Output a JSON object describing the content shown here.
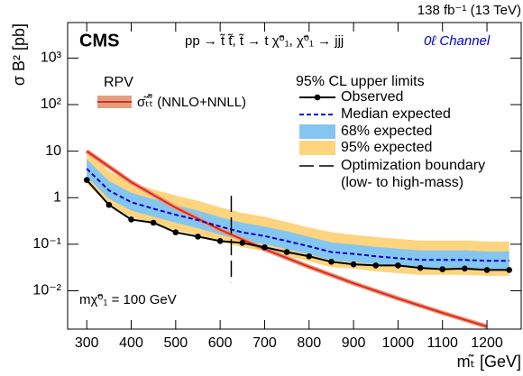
{
  "chart_data": {
    "type": "line",
    "lumi": "138 fb⁻¹ (13 TeV)",
    "experiment": "CMS",
    "process": "pp → t̃ t̃̄, t̃ → t χ̃⁰₁, χ̃⁰₁ → jjj",
    "channel": "0ℓ Channel",
    "theory_header": "RPV",
    "legend_header": "95% CL upper limits",
    "mass_note": "mχ̃⁰₁ = 100 GeV",
    "xlabel": "mₜ̃ [GeV]",
    "ylabel": "σ B² [pb]",
    "ylog": true,
    "xlim": [
      257,
      1277
    ],
    "ylim": [
      0.0015,
      5800
    ],
    "xticks": [
      300,
      400,
      500,
      600,
      700,
      800,
      900,
      1000,
      1100,
      1200
    ],
    "yticks": [
      {
        "value": 0.01,
        "label": "10⁻²"
      },
      {
        "value": 0.1,
        "label": "10⁻¹"
      },
      1,
      10,
      {
        "value": 100,
        "label": "10²"
      },
      {
        "value": 1000,
        "label": "10³"
      }
    ],
    "x": [
      300,
      350,
      400,
      450,
      500,
      550,
      600,
      650,
      700,
      750,
      800,
      850,
      900,
      950,
      1000,
      1050,
      1100,
      1150,
      1200,
      1250
    ],
    "series": [
      {
        "name": "Observed",
        "color": "#000000",
        "values": [
          2.4,
          0.7,
          0.34,
          0.29,
          0.18,
          0.146,
          0.117,
          0.107,
          0.086,
          0.068,
          0.055,
          0.042,
          0.037,
          0.035,
          0.035,
          0.031,
          0.029,
          0.03,
          0.028,
          0.028
        ]
      },
      {
        "name": "Median expected",
        "color": "#0000d0",
        "values": [
          4.2,
          1.43,
          0.8,
          0.58,
          0.43,
          0.33,
          0.24,
          0.18,
          0.15,
          0.117,
          0.09,
          0.068,
          0.062,
          0.055,
          0.05,
          0.046,
          0.046,
          0.046,
          0.044,
          0.044
        ]
      }
    ],
    "bands": [
      {
        "name": "95% expected",
        "color": "#fed47e",
        "lower": [
          2.0,
          0.68,
          0.38,
          0.28,
          0.2,
          0.157,
          0.114,
          0.086,
          0.071,
          0.056,
          0.043,
          0.032,
          0.03,
          0.026,
          0.024,
          0.022,
          0.022,
          0.022,
          0.021,
          0.021
        ],
        "upper": [
          10.9,
          3.7,
          2.1,
          1.5,
          1.12,
          0.86,
          0.62,
          0.47,
          0.39,
          0.3,
          0.23,
          0.18,
          0.16,
          0.143,
          0.13,
          0.12,
          0.12,
          0.12,
          0.114,
          0.114
        ]
      },
      {
        "name": "68% expected",
        "color": "#85c6f0",
        "lower": [
          2.8,
          0.95,
          0.53,
          0.39,
          0.29,
          0.22,
          0.16,
          0.12,
          0.1,
          0.078,
          0.06,
          0.045,
          0.041,
          0.037,
          0.033,
          0.031,
          0.031,
          0.031,
          0.029,
          0.029
        ],
        "upper": [
          6.7,
          2.3,
          1.28,
          0.93,
          0.69,
          0.53,
          0.38,
          0.29,
          0.24,
          0.19,
          0.144,
          0.109,
          0.099,
          0.088,
          0.08,
          0.074,
          0.074,
          0.074,
          0.07,
          0.07
        ]
      }
    ],
    "theory": {
      "name": "σₜ̃ₜ̃̄ (NNLO+NNLL)",
      "color": "#e8251c",
      "x": [
        300,
        400,
        500,
        600,
        700,
        800,
        900,
        1000,
        1100,
        1200
      ],
      "values": [
        10.0,
        2.15,
        0.61,
        0.205,
        0.0783,
        0.0326,
        0.0145,
        0.00683,
        0.00335,
        0.0017
      ]
    },
    "boundary": {
      "name": "Optimization boundary",
      "note": "(low- to high-mass)",
      "x": 625,
      "y": [
        1.1,
        0.015
      ]
    }
  }
}
